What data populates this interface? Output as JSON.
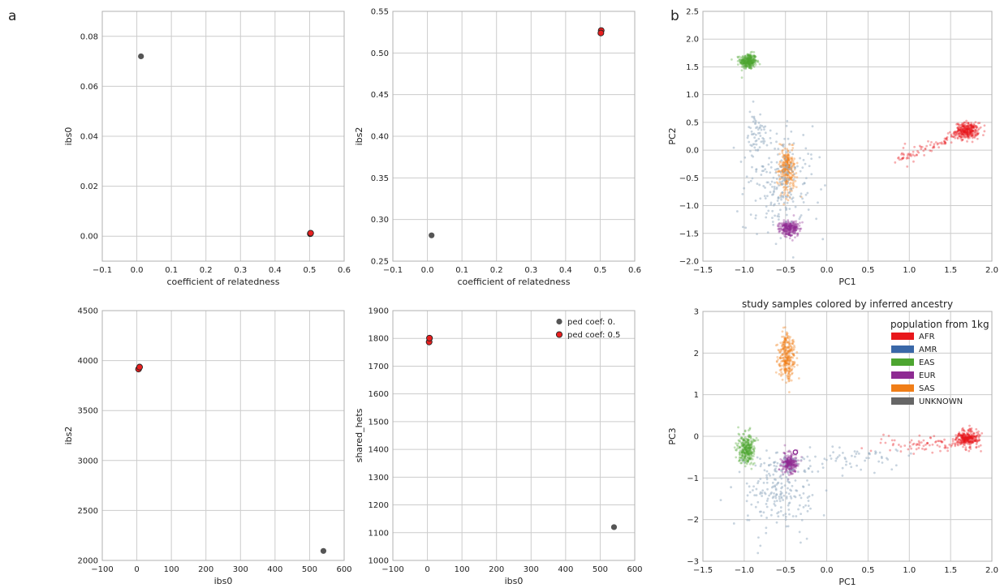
{
  "panel_labels": [
    "a",
    "b"
  ],
  "colors": {
    "grid": "#cccccc",
    "frame": "#b0b0b0",
    "gray_point": "#555555",
    "red_point": "#e82020",
    "AFR": "#e8181c",
    "AMR": "#3a68a8",
    "EAS": "#4da530",
    "EUR": "#8e2b92",
    "SAS": "#f07e18",
    "UNKNOWN": "#666666",
    "AMR_cloud": "#9ab0c4"
  },
  "chart_data": [
    {
      "id": "a1",
      "type": "scatter",
      "xlabel": "coefficient of relatedness",
      "ylabel": "ibs0",
      "xlim": [
        -0.1,
        0.6
      ],
      "ylim": [
        -0.01,
        0.09
      ],
      "xticks": [
        -0.1,
        0.0,
        0.1,
        0.2,
        0.3,
        0.4,
        0.5,
        0.6
      ],
      "xtick_labels": [
        "−0.1",
        "0.0",
        "0.1",
        "0.2",
        "0.3",
        "0.4",
        "0.5",
        "0.6"
      ],
      "yticks": [
        0.0,
        0.02,
        0.04,
        0.06,
        0.08
      ],
      "ytick_labels": [
        "0.00",
        "0.02",
        "0.04",
        "0.06",
        "0.08"
      ],
      "grid": true,
      "points": [
        {
          "x": 0.012,
          "y": 0.072,
          "group": "ped coef: 0."
        },
        {
          "x": 0.502,
          "y": 0.001,
          "group": "ped coef: 0.5"
        },
        {
          "x": 0.503,
          "y": 0.0012,
          "group": "ped coef: 0.5"
        }
      ]
    },
    {
      "id": "a2",
      "type": "scatter",
      "xlabel": "coefficient of relatedness",
      "ylabel": "ibs2",
      "xlim": [
        -0.1,
        0.6
      ],
      "ylim": [
        0.25,
        0.55
      ],
      "xticks": [
        -0.1,
        0.0,
        0.1,
        0.2,
        0.3,
        0.4,
        0.5,
        0.6
      ],
      "xtick_labels": [
        "−0.1",
        "0.0",
        "0.1",
        "0.2",
        "0.3",
        "0.4",
        "0.5",
        "0.6"
      ],
      "yticks": [
        0.25,
        0.3,
        0.35,
        0.4,
        0.45,
        0.5,
        0.55
      ],
      "ytick_labels": [
        "0.25",
        "0.30",
        "0.35",
        "0.40",
        "0.45",
        "0.50",
        "0.55"
      ],
      "grid": true,
      "points": [
        {
          "x": 0.012,
          "y": 0.281,
          "group": "ped coef: 0."
        },
        {
          "x": 0.503,
          "y": 0.527,
          "group": "ped coef: 0.5"
        },
        {
          "x": 0.502,
          "y": 0.524,
          "group": "ped coef: 0.5"
        }
      ]
    },
    {
      "id": "a3",
      "type": "scatter",
      "xlabel": "ibs0",
      "ylabel": "ibs2",
      "xlim": [
        -100,
        600
      ],
      "ylim": [
        2000,
        4500
      ],
      "xticks": [
        -100,
        0,
        100,
        200,
        300,
        400,
        500,
        600
      ],
      "xtick_labels": [
        "−100",
        "0",
        "100",
        "200",
        "300",
        "400",
        "500",
        "600"
      ],
      "yticks": [
        2000,
        2500,
        3000,
        3500,
        4000,
        4500
      ],
      "ytick_labels": [
        "2000",
        "2500",
        "3000",
        "3500",
        "4000",
        "4500"
      ],
      "grid": true,
      "points": [
        {
          "x": 540,
          "y": 2095,
          "group": "ped coef: 0."
        },
        {
          "x": 5,
          "y": 3915,
          "group": "ped coef: 0.5"
        },
        {
          "x": 8,
          "y": 3935,
          "group": "ped coef: 0.5"
        }
      ]
    },
    {
      "id": "a4",
      "type": "scatter",
      "xlabel": "ibs0",
      "ylabel": "shared_hets",
      "xlim": [
        -100,
        600
      ],
      "ylim": [
        1000,
        1900
      ],
      "xticks": [
        -100,
        0,
        100,
        200,
        300,
        400,
        500,
        600
      ],
      "xtick_labels": [
        "−100",
        "0",
        "100",
        "200",
        "300",
        "400",
        "500",
        "600"
      ],
      "yticks": [
        1000,
        1100,
        1200,
        1300,
        1400,
        1500,
        1600,
        1700,
        1800,
        1900
      ],
      "ytick_labels": [
        "1000",
        "1100",
        "1200",
        "1300",
        "1400",
        "1500",
        "1600",
        "1700",
        "1800",
        "1900"
      ],
      "grid": true,
      "legend": {
        "placement": "top-right",
        "entries": [
          {
            "label": "ped coef: 0.",
            "color_key": "gray_point"
          },
          {
            "label": "ped coef: 0.5",
            "color_key": "red_point"
          }
        ]
      },
      "points": [
        {
          "x": 540,
          "y": 1120,
          "group": "ped coef: 0."
        },
        {
          "x": 5,
          "y": 1787,
          "group": "ped coef: 0.5"
        },
        {
          "x": 6,
          "y": 1801,
          "group": "ped coef: 0.5"
        }
      ]
    },
    {
      "id": "b1",
      "type": "scatter",
      "xlabel": "PC1",
      "ylabel": "PC2",
      "xlim": [
        -1.5,
        2.0
      ],
      "ylim": [
        -2.0,
        2.5
      ],
      "xticks": [
        -1.5,
        -1.0,
        -0.5,
        0.0,
        0.5,
        1.0,
        1.5,
        2.0
      ],
      "xtick_labels": [
        "−1.5",
        "−1.0",
        "−0.5",
        "0.0",
        "0.5",
        "1.0",
        "1.5",
        "2.0"
      ],
      "yticks": [
        -2.0,
        -1.5,
        -1.0,
        -0.5,
        0.0,
        0.5,
        1.0,
        1.5,
        2.0,
        2.5
      ],
      "ytick_labels": [
        "−2.0",
        "−1.5",
        "−1.0",
        "−0.5",
        "0.0",
        "0.5",
        "1.0",
        "1.5",
        "2.0",
        "2.5"
      ],
      "grid": true,
      "clusters": [
        {
          "population": "EAS",
          "center": [
            -0.95,
            1.6
          ],
          "spread": [
            0.05,
            0.07
          ],
          "n": 300
        },
        {
          "population": "AFR",
          "center": [
            1.7,
            0.35
          ],
          "spread": [
            0.07,
            0.07
          ],
          "n": 300
        },
        {
          "population": "AFR",
          "center": [
            1.2,
            0.0
          ],
          "spread": [
            0.25,
            0.15
          ],
          "n": 90,
          "tail_from": [
            0.9,
            -0.15
          ],
          "tail_to": [
            1.6,
            0.3
          ]
        },
        {
          "population": "SAS",
          "center": [
            -0.48,
            -0.35
          ],
          "spread": [
            0.05,
            0.2
          ],
          "n": 300
        },
        {
          "population": "EUR",
          "center": [
            -0.45,
            -1.4
          ],
          "spread": [
            0.06,
            0.07
          ],
          "n": 280
        },
        {
          "population": "AMR",
          "center": [
            -0.55,
            -0.6
          ],
          "spread": [
            0.2,
            0.45
          ],
          "n": 220
        },
        {
          "population": "AMR",
          "center": [
            -0.85,
            0.3
          ],
          "spread": [
            0.07,
            0.2
          ],
          "n": 60
        }
      ]
    },
    {
      "id": "b2",
      "type": "scatter",
      "title": "study samples colored by inferred ancestry",
      "xlabel": "PC1",
      "ylabel": "PC3",
      "xlim": [
        -1.5,
        2.0
      ],
      "ylim": [
        -3,
        3
      ],
      "xticks": [
        -1.5,
        -1.0,
        -0.5,
        0.0,
        0.5,
        1.0,
        1.5,
        2.0
      ],
      "xtick_labels": [
        "−1.5",
        "−1.0",
        "−0.5",
        "0.0",
        "0.5",
        "1.0",
        "1.5",
        "2.0"
      ],
      "yticks": [
        -3,
        -2,
        -1,
        0,
        1,
        2,
        3
      ],
      "ytick_labels": [
        "−3",
        "−2",
        "−1",
        "0",
        "1",
        "2",
        "3"
      ],
      "grid": true,
      "legend": {
        "title": "population from 1kg",
        "placement": "top-right",
        "entries": [
          {
            "label": "AFR",
            "color_key": "AFR"
          },
          {
            "label": "AMR",
            "color_key": "AMR"
          },
          {
            "label": "EAS",
            "color_key": "EAS"
          },
          {
            "label": "EUR",
            "color_key": "EUR"
          },
          {
            "label": "SAS",
            "color_key": "SAS"
          },
          {
            "label": "UNKNOWN",
            "color_key": "UNKNOWN"
          }
        ]
      },
      "clusters": [
        {
          "population": "SAS",
          "center": [
            -0.48,
            1.9
          ],
          "spread": [
            0.05,
            0.28
          ],
          "n": 300
        },
        {
          "population": "EAS",
          "center": [
            -0.97,
            -0.3
          ],
          "spread": [
            0.05,
            0.18
          ],
          "n": 300
        },
        {
          "population": "EUR",
          "center": [
            -0.45,
            -0.65
          ],
          "spread": [
            0.05,
            0.12
          ],
          "n": 280
        },
        {
          "population": "AFR",
          "center": [
            1.7,
            -0.05
          ],
          "spread": [
            0.07,
            0.1
          ],
          "n": 300
        },
        {
          "population": "AFR",
          "center": [
            1.2,
            -0.2
          ],
          "spread": [
            0.25,
            0.1
          ],
          "n": 80
        },
        {
          "population": "AMR",
          "center": [
            -0.6,
            -1.3
          ],
          "spread": [
            0.2,
            0.5
          ],
          "n": 220
        },
        {
          "population": "AMR",
          "center": [
            0.3,
            -0.5
          ],
          "spread": [
            0.3,
            0.15
          ],
          "n": 60
        }
      ],
      "highlight_point": {
        "x": -0.38,
        "y": -0.38
      }
    }
  ]
}
